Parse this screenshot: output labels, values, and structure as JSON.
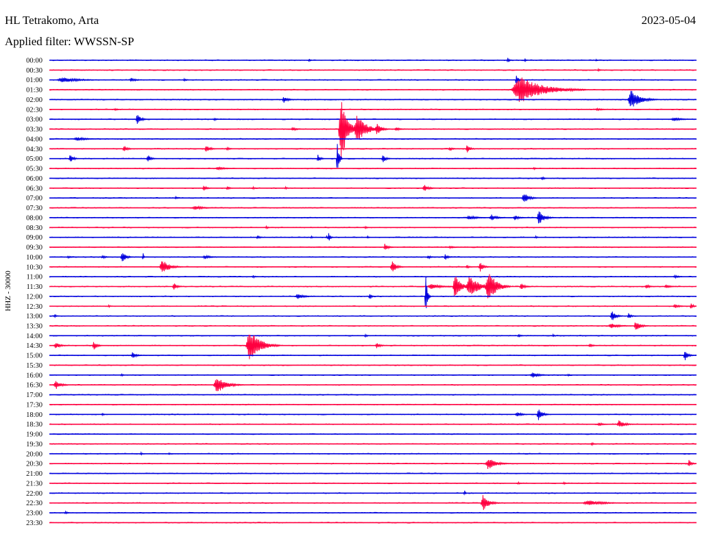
{
  "header": {
    "station": "HL Tetrakomo, Arta",
    "date": "2023-05-04",
    "filter": "Applied filter: WWSSN-SP"
  },
  "chart_data": {
    "type": "line",
    "title": "HL Tetrakomo, Arta",
    "ylabel": "HHZ - 30000",
    "colors": [
      "#0000dd",
      "#ff0040"
    ],
    "x_range_minutes": [
      0,
      30
    ],
    "grid": false,
    "rows": [
      {
        "label": "00:00",
        "events": [
          {
            "t": 12.0,
            "a": 3,
            "w": 0.2
          },
          {
            "t": 21.2,
            "a": 4,
            "w": 0.3
          },
          {
            "t": 22.0,
            "a": 3,
            "w": 0.2
          },
          {
            "t": 25.3,
            "a": 2,
            "w": 0.2
          }
        ]
      },
      {
        "label": "00:30",
        "events": [
          {
            "t": 25.4,
            "a": 2,
            "w": 0.3
          }
        ]
      },
      {
        "label": "01:00",
        "events": [
          {
            "t": 0.3,
            "a": 4,
            "w": 2.5
          },
          {
            "t": 3.7,
            "a": 3,
            "w": 0.8
          },
          {
            "t": 6.2,
            "a": 2,
            "w": 0.4
          },
          {
            "t": 21.6,
            "a": 9,
            "w": 0.3
          }
        ]
      },
      {
        "label": "01:30",
        "events": [
          {
            "t": 21.4,
            "a": 20,
            "w": 3.5
          }
        ]
      },
      {
        "label": "02:00",
        "events": [
          {
            "t": 10.8,
            "a": 5,
            "w": 0.6
          },
          {
            "t": 26.8,
            "a": 14,
            "w": 1.4
          }
        ]
      },
      {
        "label": "02:30",
        "events": [
          {
            "t": 3.0,
            "a": 2,
            "w": 0.4
          },
          {
            "t": 25.3,
            "a": 2,
            "w": 0.8
          }
        ]
      },
      {
        "label": "03:00",
        "events": [
          {
            "t": 4.0,
            "a": 8,
            "w": 0.6
          },
          {
            "t": 7.6,
            "a": 2,
            "w": 0.4
          },
          {
            "t": 28.8,
            "a": 3,
            "w": 1.2
          }
        ]
      },
      {
        "label": "03:30",
        "events": [
          {
            "t": 11.2,
            "a": 3,
            "w": 0.6
          },
          {
            "t": 13.4,
            "a": 55,
            "w": 0.9
          },
          {
            "t": 14.1,
            "a": 22,
            "w": 1.4
          },
          {
            "t": 15.1,
            "a": 10,
            "w": 0.7
          },
          {
            "t": 16.0,
            "a": 3,
            "w": 0.6
          }
        ]
      },
      {
        "label": "04:00",
        "events": [
          {
            "t": 1.1,
            "a": 3,
            "w": 1.5
          }
        ]
      },
      {
        "label": "04:30",
        "events": [
          {
            "t": 3.4,
            "a": 6,
            "w": 0.5
          },
          {
            "t": 7.2,
            "a": 6,
            "w": 0.6
          },
          {
            "t": 8.2,
            "a": 3,
            "w": 0.4
          },
          {
            "t": 18.5,
            "a": 3,
            "w": 0.5
          },
          {
            "t": 19.3,
            "a": 6,
            "w": 0.5
          }
        ]
      },
      {
        "label": "05:00",
        "events": [
          {
            "t": 0.9,
            "a": 7,
            "w": 0.5
          },
          {
            "t": 4.5,
            "a": 6,
            "w": 0.5
          },
          {
            "t": 12.4,
            "a": 6,
            "w": 0.4
          },
          {
            "t": 13.3,
            "a": 26,
            "w": 0.3
          },
          {
            "t": 15.4,
            "a": 6,
            "w": 0.5
          }
        ]
      },
      {
        "label": "05:30",
        "events": [
          {
            "t": 7.7,
            "a": 3,
            "w": 1.0
          },
          {
            "t": 22.4,
            "a": 2,
            "w": 0.3
          }
        ]
      },
      {
        "label": "06:00",
        "events": [
          {
            "t": 22.8,
            "a": 3,
            "w": 0.3
          }
        ]
      },
      {
        "label": "06:30",
        "events": [
          {
            "t": 7.1,
            "a": 4,
            "w": 0.5
          },
          {
            "t": 8.2,
            "a": 3,
            "w": 0.4
          },
          {
            "t": 9.4,
            "a": 2,
            "w": 0.3
          },
          {
            "t": 10.9,
            "a": 2,
            "w": 0.3
          },
          {
            "t": 17.3,
            "a": 5,
            "w": 0.7
          }
        ]
      },
      {
        "label": "07:00",
        "events": [
          {
            "t": 5.8,
            "a": 2,
            "w": 0.4
          },
          {
            "t": 21.9,
            "a": 8,
            "w": 0.8
          }
        ]
      },
      {
        "label": "07:30",
        "events": [
          {
            "t": 6.6,
            "a": 3,
            "w": 1.3
          }
        ]
      },
      {
        "label": "08:00",
        "events": [
          {
            "t": 19.3,
            "a": 3,
            "w": 1.3
          },
          {
            "t": 20.4,
            "a": 5,
            "w": 0.8
          },
          {
            "t": 21.5,
            "a": 4,
            "w": 0.7
          },
          {
            "t": 22.6,
            "a": 11,
            "w": 0.8
          }
        ]
      },
      {
        "label": "08:30",
        "events": [
          {
            "t": 10.0,
            "a": 2,
            "w": 0.4
          },
          {
            "t": 14.6,
            "a": 2,
            "w": 0.4
          }
        ]
      },
      {
        "label": "09:00",
        "events": [
          {
            "t": 9.6,
            "a": 3,
            "w": 0.4
          },
          {
            "t": 12.1,
            "a": 2,
            "w": 0.3
          },
          {
            "t": 12.8,
            "a": 2,
            "w": 0.3
          },
          {
            "t": 12.9,
            "a": 7,
            "w": 0.3
          },
          {
            "t": 14.7,
            "a": 2,
            "w": 0.3
          },
          {
            "t": 22.5,
            "a": 2,
            "w": 0.3
          }
        ]
      },
      {
        "label": "09:30",
        "events": [
          {
            "t": 15.5,
            "a": 6,
            "w": 0.5
          },
          {
            "t": 18.5,
            "a": 2,
            "w": 0.6
          }
        ]
      },
      {
        "label": "10:00",
        "events": [
          {
            "t": 0.8,
            "a": 2,
            "w": 0.5
          },
          {
            "t": 2.4,
            "a": 3,
            "w": 0.5
          },
          {
            "t": 3.3,
            "a": 9,
            "w": 0.6
          },
          {
            "t": 4.3,
            "a": 7,
            "w": 0.15
          },
          {
            "t": 7.1,
            "a": 3,
            "w": 0.9
          },
          {
            "t": 17.5,
            "a": 3,
            "w": 0.5
          },
          {
            "t": 18.3,
            "a": 5,
            "w": 0.4
          }
        ]
      },
      {
        "label": "10:30",
        "events": [
          {
            "t": 5.1,
            "a": 11,
            "w": 1.1
          },
          {
            "t": 15.8,
            "a": 9,
            "w": 0.7
          },
          {
            "t": 19.3,
            "a": 3,
            "w": 0.4
          },
          {
            "t": 19.9,
            "a": 9,
            "w": 0.5
          }
        ]
      },
      {
        "label": "11:00",
        "events": [
          {
            "t": 9.4,
            "a": 2,
            "w": 0.4
          },
          {
            "t": 28.9,
            "a": 2,
            "w": 0.8
          }
        ]
      },
      {
        "label": "11:30",
        "events": [
          {
            "t": 5.7,
            "a": 6,
            "w": 0.5
          },
          {
            "t": 17.5,
            "a": 4,
            "w": 1.6
          },
          {
            "t": 18.7,
            "a": 22,
            "w": 0.8
          },
          {
            "t": 19.3,
            "a": 16,
            "w": 1.5
          },
          {
            "t": 20.2,
            "a": 26,
            "w": 1.2
          },
          {
            "t": 21.8,
            "a": 5,
            "w": 0.6
          },
          {
            "t": 27.6,
            "a": 3,
            "w": 0.6
          },
          {
            "t": 28.5,
            "a": 3,
            "w": 0.7
          }
        ]
      },
      {
        "label": "12:00",
        "events": [
          {
            "t": 11.4,
            "a": 4,
            "w": 1.0
          },
          {
            "t": 14.8,
            "a": 5,
            "w": 0.3
          },
          {
            "t": 17.4,
            "a": 33,
            "w": 0.3
          }
        ]
      },
      {
        "label": "12:30",
        "events": [
          {
            "t": 2.7,
            "a": 2,
            "w": 0.3
          },
          {
            "t": 28.9,
            "a": 3,
            "w": 0.8
          },
          {
            "t": 29.7,
            "a": 7,
            "w": 0.5
          }
        ]
      },
      {
        "label": "13:00",
        "events": [
          {
            "t": 0.2,
            "a": 3,
            "w": 0.3
          },
          {
            "t": 26.0,
            "a": 9,
            "w": 0.6
          },
          {
            "t": 26.8,
            "a": 5,
            "w": 0.4
          }
        ]
      },
      {
        "label": "13:30",
        "events": [
          {
            "t": 25.9,
            "a": 4,
            "w": 1.2
          },
          {
            "t": 27.1,
            "a": 8,
            "w": 0.7
          }
        ]
      },
      {
        "label": "14:00",
        "events": [
          {
            "t": 14.6,
            "a": 3,
            "w": 0.3
          },
          {
            "t": 21.7,
            "a": 3,
            "w": 0.4
          },
          {
            "t": 23.3,
            "a": 2,
            "w": 0.3
          }
        ]
      },
      {
        "label": "14:30",
        "events": [
          {
            "t": 0.2,
            "a": 5,
            "w": 0.7
          },
          {
            "t": 2.0,
            "a": 7,
            "w": 0.5
          },
          {
            "t": 9.1,
            "a": 24,
            "w": 1.6
          },
          {
            "t": 15.1,
            "a": 4,
            "w": 0.6
          },
          {
            "t": 25.0,
            "a": 3,
            "w": 0.5
          }
        ]
      },
      {
        "label": "15:00",
        "events": [
          {
            "t": 3.8,
            "a": 6,
            "w": 0.5
          },
          {
            "t": 29.4,
            "a": 9,
            "w": 0.5
          }
        ]
      },
      {
        "label": "15:30",
        "events": []
      },
      {
        "label": "16:00",
        "events": [
          {
            "t": 3.3,
            "a": 2,
            "w": 0.3
          },
          {
            "t": 22.3,
            "a": 5,
            "w": 0.9
          },
          {
            "t": 24.0,
            "a": 2,
            "w": 0.3
          }
        ]
      },
      {
        "label": "16:30",
        "events": [
          {
            "t": 0.2,
            "a": 7,
            "w": 0.8
          },
          {
            "t": 7.6,
            "a": 13,
            "w": 1.4
          }
        ]
      },
      {
        "label": "17:00",
        "events": []
      },
      {
        "label": "17:30",
        "events": []
      },
      {
        "label": "18:00",
        "events": [
          {
            "t": 2.4,
            "a": 2,
            "w": 0.3
          },
          {
            "t": 21.6,
            "a": 4,
            "w": 0.7
          },
          {
            "t": 22.6,
            "a": 10,
            "w": 0.6
          }
        ]
      },
      {
        "label": "18:30",
        "events": [
          {
            "t": 25.4,
            "a": 3,
            "w": 0.6
          },
          {
            "t": 26.3,
            "a": 6,
            "w": 0.9
          }
        ]
      },
      {
        "label": "19:00",
        "events": []
      },
      {
        "label": "19:30",
        "events": [
          {
            "t": 25.1,
            "a": 3,
            "w": 0.3
          }
        ]
      },
      {
        "label": "20:00",
        "events": [
          {
            "t": 4.2,
            "a": 2,
            "w": 0.3
          },
          {
            "t": 5.5,
            "a": 2,
            "w": 0.3
          }
        ]
      },
      {
        "label": "20:30",
        "events": [
          {
            "t": 20.2,
            "a": 9,
            "w": 1.2
          },
          {
            "t": 29.6,
            "a": 6,
            "w": 0.7
          }
        ]
      },
      {
        "label": "21:00",
        "events": []
      },
      {
        "label": "21:30",
        "events": [
          {
            "t": 21.7,
            "a": 2,
            "w": 0.3
          },
          {
            "t": 23.8,
            "a": 2,
            "w": 0.3
          }
        ]
      },
      {
        "label": "22:00",
        "events": [
          {
            "t": 19.2,
            "a": 4,
            "w": 0.2
          }
        ]
      },
      {
        "label": "22:30",
        "events": [
          {
            "t": 20.0,
            "a": 13,
            "w": 0.9
          },
          {
            "t": 24.7,
            "a": 4,
            "w": 2.3
          }
        ]
      },
      {
        "label": "23:00",
        "events": [
          {
            "t": 0.7,
            "a": 2,
            "w": 0.4
          }
        ]
      },
      {
        "label": "23:30",
        "events": []
      }
    ]
  }
}
